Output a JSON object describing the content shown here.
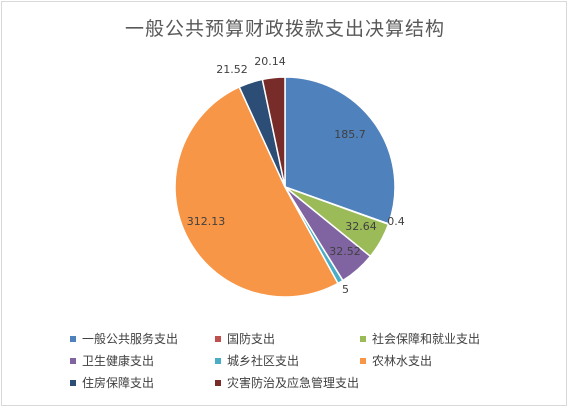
{
  "chart_data": {
    "type": "pie",
    "title": "一般公共预算财政拨款支出决算结构",
    "categories": [
      "一般公共服务支出",
      "国防支出",
      "社会保障和就业支出",
      "卫生健康支出",
      "城乡社区支出",
      "农林水支出",
      "住房保障支出",
      "灾害防治及应急管理支出"
    ],
    "values": [
      185.7,
      0.4,
      32.64,
      32.52,
      5,
      312.13,
      21.52,
      20.14
    ],
    "data_labels": [
      "185.7",
      "0.4",
      "32.64",
      "32.52",
      "5",
      "312.13",
      "21.52",
      "20.14"
    ],
    "colors": [
      "#4f81bd",
      "#c0504d",
      "#9bbb59",
      "#8064a2",
      "#4bacc6",
      "#f79646",
      "#2c4d75",
      "#772c2a"
    ],
    "start_angle": "12 o'clock, clockwise",
    "legend_position": "bottom"
  }
}
